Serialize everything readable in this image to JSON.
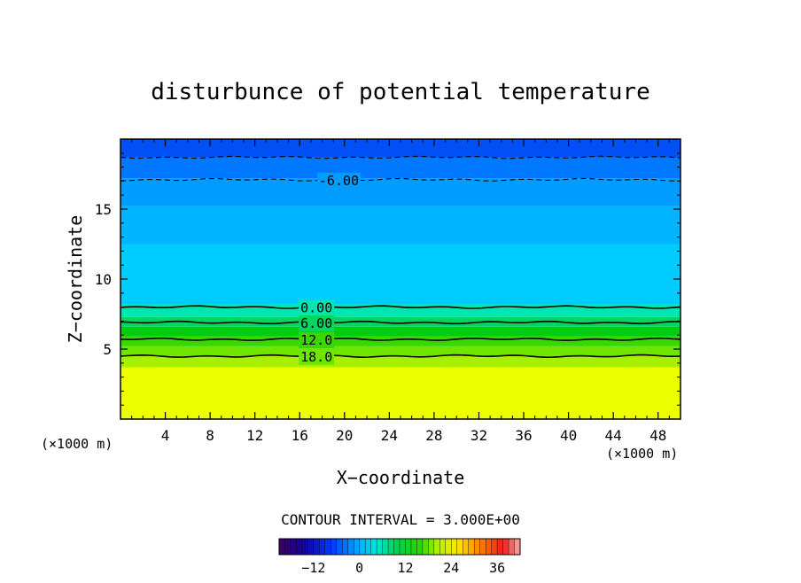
{
  "chart_data": {
    "type": "contour",
    "title": "disturbunce of potential temperature",
    "xlabel": "X−coordinate",
    "ylabel": "Z−coordinate",
    "x_unit_left": "(×1000 m)",
    "x_unit_right": "(×1000 m)",
    "xlim": [
      0,
      50
    ],
    "ylim": [
      0,
      20
    ],
    "x_ticks": [
      4,
      8,
      12,
      16,
      20,
      24,
      28,
      32,
      36,
      40,
      44,
      48
    ],
    "y_ticks": [
      5,
      10,
      15
    ],
    "bands": [
      {
        "z0": 0,
        "z1": 3.7,
        "color": "#eeff00"
      },
      {
        "z0": 3.7,
        "z1": 4.5,
        "color": "#a8f000"
      },
      {
        "z0": 4.5,
        "z1": 5.2,
        "color": "#6ee600"
      },
      {
        "z0": 5.2,
        "z1": 5.9,
        "color": "#3ad600"
      },
      {
        "z0": 5.9,
        "z1": 6.6,
        "color": "#00cc10"
      },
      {
        "z0": 6.6,
        "z1": 7.3,
        "color": "#00d660"
      },
      {
        "z0": 7.3,
        "z1": 8.2,
        "color": "#00e6b0"
      },
      {
        "z0": 8.2,
        "z1": 12.5,
        "color": "#00ccff"
      },
      {
        "z0": 12.5,
        "z1": 15.2,
        "color": "#00b4ff"
      },
      {
        "z0": 15.2,
        "z1": 17.2,
        "color": "#009cff"
      },
      {
        "z0": 17.2,
        "z1": 18.7,
        "color": "#0078ff"
      },
      {
        "z0": 18.7,
        "z1": 20,
        "color": "#0050f5"
      }
    ],
    "contours": [
      {
        "z": 18.7,
        "dashed": true,
        "label": ""
      },
      {
        "z": 17.1,
        "dashed": true,
        "label": "-6.00",
        "label_x": 19.5
      },
      {
        "z": 8.0,
        "dashed": false,
        "label": "0.00",
        "label_x": 17.5
      },
      {
        "z": 6.9,
        "dashed": false,
        "label": "6.00",
        "label_x": 17.5
      },
      {
        "z": 5.7,
        "dashed": false,
        "label": "12.0",
        "label_x": 17.5
      },
      {
        "z": 4.5,
        "dashed": false,
        "label": "18.0",
        "label_x": 17.5
      }
    ],
    "contour_interval_label": "CONTOUR INTERVAL = 3.000E+00",
    "colorbar": {
      "min": -21,
      "max": 42,
      "ticks": [
        -12,
        0,
        12,
        24,
        36
      ]
    }
  }
}
